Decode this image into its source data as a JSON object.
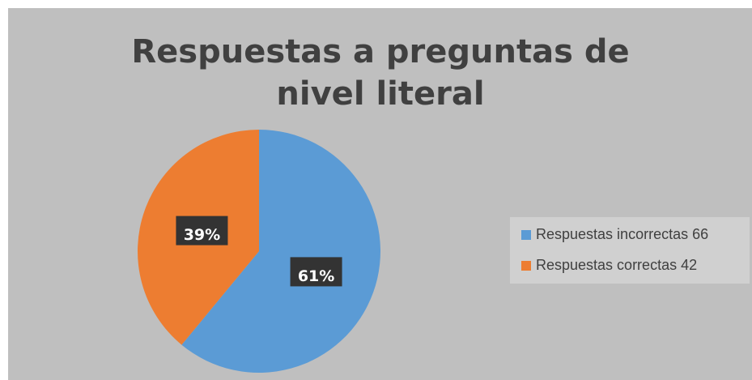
{
  "chart_data": {
    "type": "pie",
    "title": "Respuestas a preguntas de nivel literal",
    "series": [
      {
        "name": "Respuestas incorrectas 66",
        "color": "#5b9bd5"
      },
      {
        "name": "Respuestas correctas 42",
        "color": "#ed7d31"
      }
    ],
    "values": [
      61,
      39
    ],
    "value_labels": [
      "61%",
      "39%"
    ],
    "legend": "right"
  }
}
